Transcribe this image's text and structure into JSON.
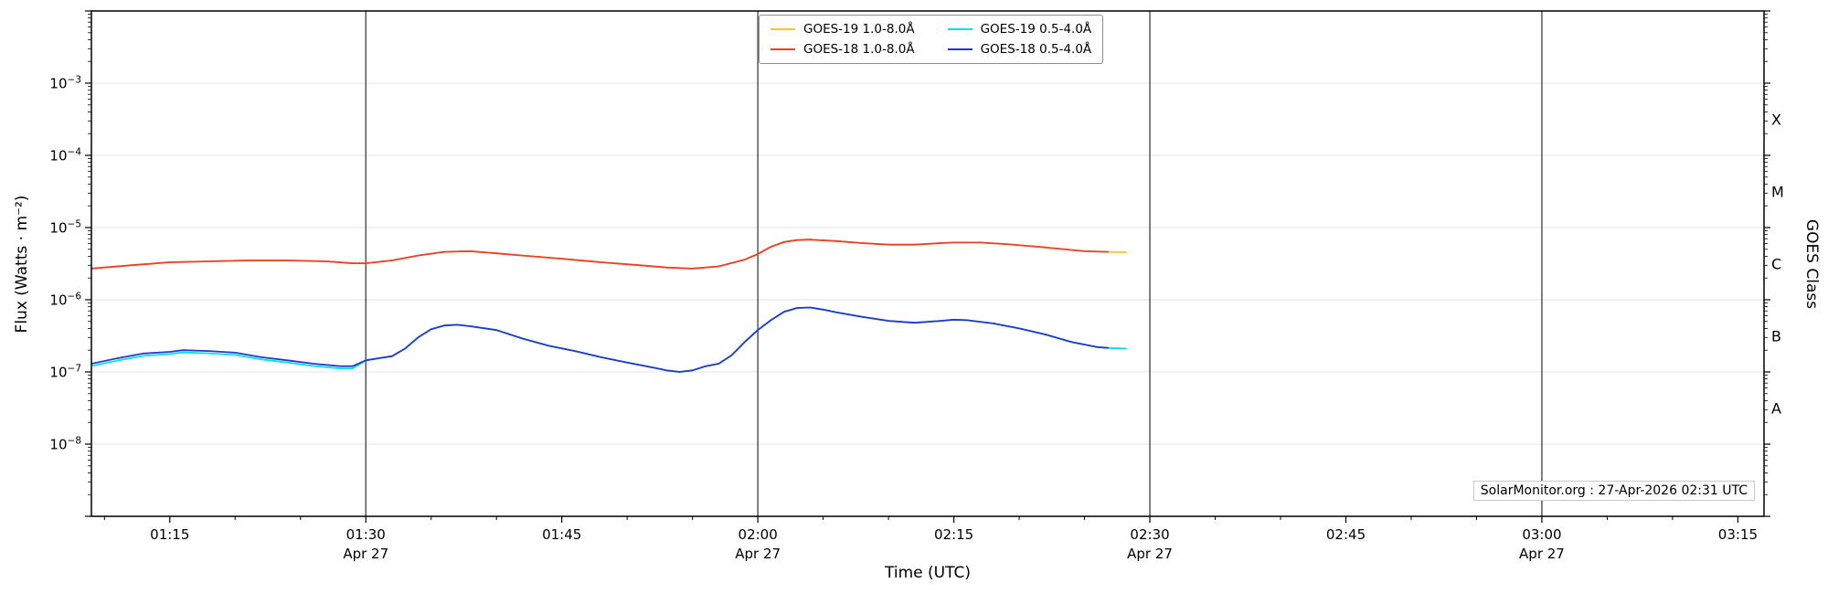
{
  "figure": {
    "background": "#ffffff",
    "footer_note": "SolarMonitor.org : 27-Apr-2026 02:31 UTC"
  },
  "chart_data": {
    "type": "line",
    "title": "",
    "xlabel": "Time (UTC)",
    "ylabel": "Flux (Watts · m⁻²)",
    "ylabel_right": "GOES Class",
    "x_unit": "minutes after 00:00 UTC",
    "xlim": [
      69,
      197
    ],
    "ylog": true,
    "ylim": [
      1e-09,
      0.01
    ],
    "x_minor_step": 5,
    "x_ticks": [
      {
        "t": 75,
        "label": "01:15"
      },
      {
        "t": 90,
        "label": "01:30",
        "date": "Apr 27"
      },
      {
        "t": 105,
        "label": "01:45"
      },
      {
        "t": 120,
        "label": "02:00",
        "date": "Apr 27"
      },
      {
        "t": 135,
        "label": "02:15"
      },
      {
        "t": 150,
        "label": "02:30",
        "date": "Apr 27"
      },
      {
        "t": 165,
        "label": "02:45"
      },
      {
        "t": 180,
        "label": "03:00",
        "date": "Apr 27"
      },
      {
        "t": 195,
        "label": "03:15"
      }
    ],
    "y_tick_exponents": [
      -3,
      -4,
      -5,
      -6,
      -7,
      -8
    ],
    "goes_classes": [
      {
        "label": "X",
        "log_center": -3.5
      },
      {
        "label": "M",
        "log_center": -4.5
      },
      {
        "label": "C",
        "log_center": -5.5
      },
      {
        "label": "B",
        "log_center": -6.5
      },
      {
        "label": "A",
        "log_center": -7.5
      }
    ],
    "legend_order": [
      0,
      2,
      1,
      3
    ],
    "series": [
      {
        "name": "GOES-19 1.0-8.0Å",
        "color": "#ffc125",
        "x": [
          69,
          72,
          75,
          78,
          81,
          84,
          87,
          89,
          90,
          92,
          94,
          96,
          98,
          100,
          102,
          105,
          108,
          111,
          113,
          115,
          117,
          119,
          120,
          121,
          122,
          123,
          124,
          126,
          128,
          130,
          132,
          134,
          135,
          137,
          139,
          141,
          143,
          145,
          146.8,
          148.2
        ],
        "y": [
          2.7e-06,
          3e-06,
          3.3e-06,
          3.4e-06,
          3.5e-06,
          3.5e-06,
          3.4e-06,
          3.2e-06,
          3.2e-06,
          3.5e-06,
          4.1e-06,
          4.6e-06,
          4.7e-06,
          4.4e-06,
          4.1e-06,
          3.7e-06,
          3.3e-06,
          3e-06,
          2.8e-06,
          2.7e-06,
          2.9e-06,
          3.6e-06,
          4.3e-06,
          5.4e-06,
          6.3e-06,
          6.7e-06,
          6.8e-06,
          6.5e-06,
          6.1e-06,
          5.8e-06,
          5.8e-06,
          6.1e-06,
          6.2e-06,
          6.2e-06,
          5.9e-06,
          5.5e-06,
          5.1e-06,
          4.7e-06,
          4.6e-06,
          4.55e-06
        ]
      },
      {
        "name": "GOES-19 0.5-4.0Å",
        "color": "#00e0ee",
        "x": [
          69,
          71,
          73,
          75,
          76,
          78,
          80,
          82,
          84,
          86,
          88,
          89,
          90,
          91,
          92,
          93,
          94,
          95,
          96,
          97,
          98,
          100,
          102,
          104,
          106,
          108,
          110,
          112,
          113,
          114,
          115,
          116,
          117,
          118,
          119,
          120,
          121,
          122,
          123,
          124,
          125,
          126,
          128,
          130,
          132,
          134,
          135,
          136,
          138,
          140,
          142,
          144,
          146,
          146.8,
          148.2
        ],
        "y": [
          1.21e-07,
          1.44e-07,
          1.67e-07,
          1.77e-07,
          1.86e-07,
          1.81e-07,
          1.72e-07,
          1.49e-07,
          1.35e-07,
          1.21e-07,
          1.12e-07,
          1.12e-07,
          1.45e-07,
          1.55e-07,
          1.65e-07,
          2.1e-07,
          3e-07,
          3.9e-07,
          4.4e-07,
          4.5e-07,
          4.3e-07,
          3.8e-07,
          2.9e-07,
          2.3e-07,
          1.95e-07,
          1.6e-07,
          1.35e-07,
          1.15e-07,
          1.05e-07,
          1e-07,
          1.05e-07,
          1.2e-07,
          1.3e-07,
          1.7e-07,
          2.6e-07,
          3.8e-07,
          5.2e-07,
          6.8e-07,
          7.7e-07,
          7.8e-07,
          7.3e-07,
          6.7e-07,
          5.8e-07,
          5.1e-07,
          4.8e-07,
          5.1e-07,
          5.3e-07,
          5.2e-07,
          4.7e-07,
          4e-07,
          3.3e-07,
          2.6e-07,
          2.2e-07,
          2.15e-07,
          2.1e-07
        ]
      },
      {
        "name": "GOES-18 1.0-8.0Å",
        "color": "#e8402a",
        "x": [
          69,
          72,
          75,
          78,
          81,
          84,
          87,
          89,
          90,
          92,
          94,
          96,
          98,
          100,
          102,
          105,
          108,
          111,
          113,
          115,
          117,
          119,
          120,
          121,
          122,
          123,
          124,
          126,
          128,
          130,
          132,
          134,
          135,
          137,
          139,
          141,
          143,
          145,
          146.8
        ],
        "y": [
          2.7e-06,
          3e-06,
          3.3e-06,
          3.4e-06,
          3.5e-06,
          3.5e-06,
          3.4e-06,
          3.2e-06,
          3.2e-06,
          3.5e-06,
          4.1e-06,
          4.6e-06,
          4.7e-06,
          4.4e-06,
          4.1e-06,
          3.7e-06,
          3.3e-06,
          3e-06,
          2.8e-06,
          2.7e-06,
          2.9e-06,
          3.6e-06,
          4.3e-06,
          5.4e-06,
          6.3e-06,
          6.7e-06,
          6.8e-06,
          6.5e-06,
          6.1e-06,
          5.8e-06,
          5.8e-06,
          6.1e-06,
          6.2e-06,
          6.2e-06,
          5.9e-06,
          5.5e-06,
          5.1e-06,
          4.7e-06,
          4.6e-06
        ]
      },
      {
        "name": "GOES-18 0.5-4.0Å",
        "color": "#2438c8",
        "x": [
          69,
          71,
          73,
          75,
          76,
          78,
          80,
          82,
          84,
          86,
          88,
          89,
          90,
          91,
          92,
          93,
          94,
          95,
          96,
          97,
          98,
          100,
          102,
          104,
          106,
          108,
          110,
          112,
          113,
          114,
          115,
          116,
          117,
          118,
          119,
          120,
          121,
          122,
          123,
          124,
          125,
          126,
          128,
          130,
          132,
          134,
          135,
          136,
          138,
          140,
          142,
          144,
          146,
          146.8
        ],
        "y": [
          1.3e-07,
          1.55e-07,
          1.8e-07,
          1.9e-07,
          2e-07,
          1.95e-07,
          1.85e-07,
          1.6e-07,
          1.45e-07,
          1.3e-07,
          1.2e-07,
          1.2e-07,
          1.45e-07,
          1.55e-07,
          1.65e-07,
          2.1e-07,
          3e-07,
          3.9e-07,
          4.4e-07,
          4.5e-07,
          4.3e-07,
          3.8e-07,
          2.9e-07,
          2.3e-07,
          1.95e-07,
          1.6e-07,
          1.35e-07,
          1.15e-07,
          1.05e-07,
          1e-07,
          1.05e-07,
          1.2e-07,
          1.3e-07,
          1.7e-07,
          2.6e-07,
          3.8e-07,
          5.2e-07,
          6.8e-07,
          7.7e-07,
          7.8e-07,
          7.3e-07,
          6.7e-07,
          5.8e-07,
          5.1e-07,
          4.8e-07,
          5.1e-07,
          5.3e-07,
          5.2e-07,
          4.7e-07,
          4e-07,
          3.3e-07,
          2.6e-07,
          2.2e-07,
          2.15e-07
        ]
      }
    ],
    "colors": {
      "axis": "#000000",
      "date_gridline": "#3c3c3c",
      "decade_gridline": "#e6e6e6"
    },
    "legend_position": "top-center",
    "grid": "horizontal decade lines + dark vertical lines at date ticks"
  }
}
